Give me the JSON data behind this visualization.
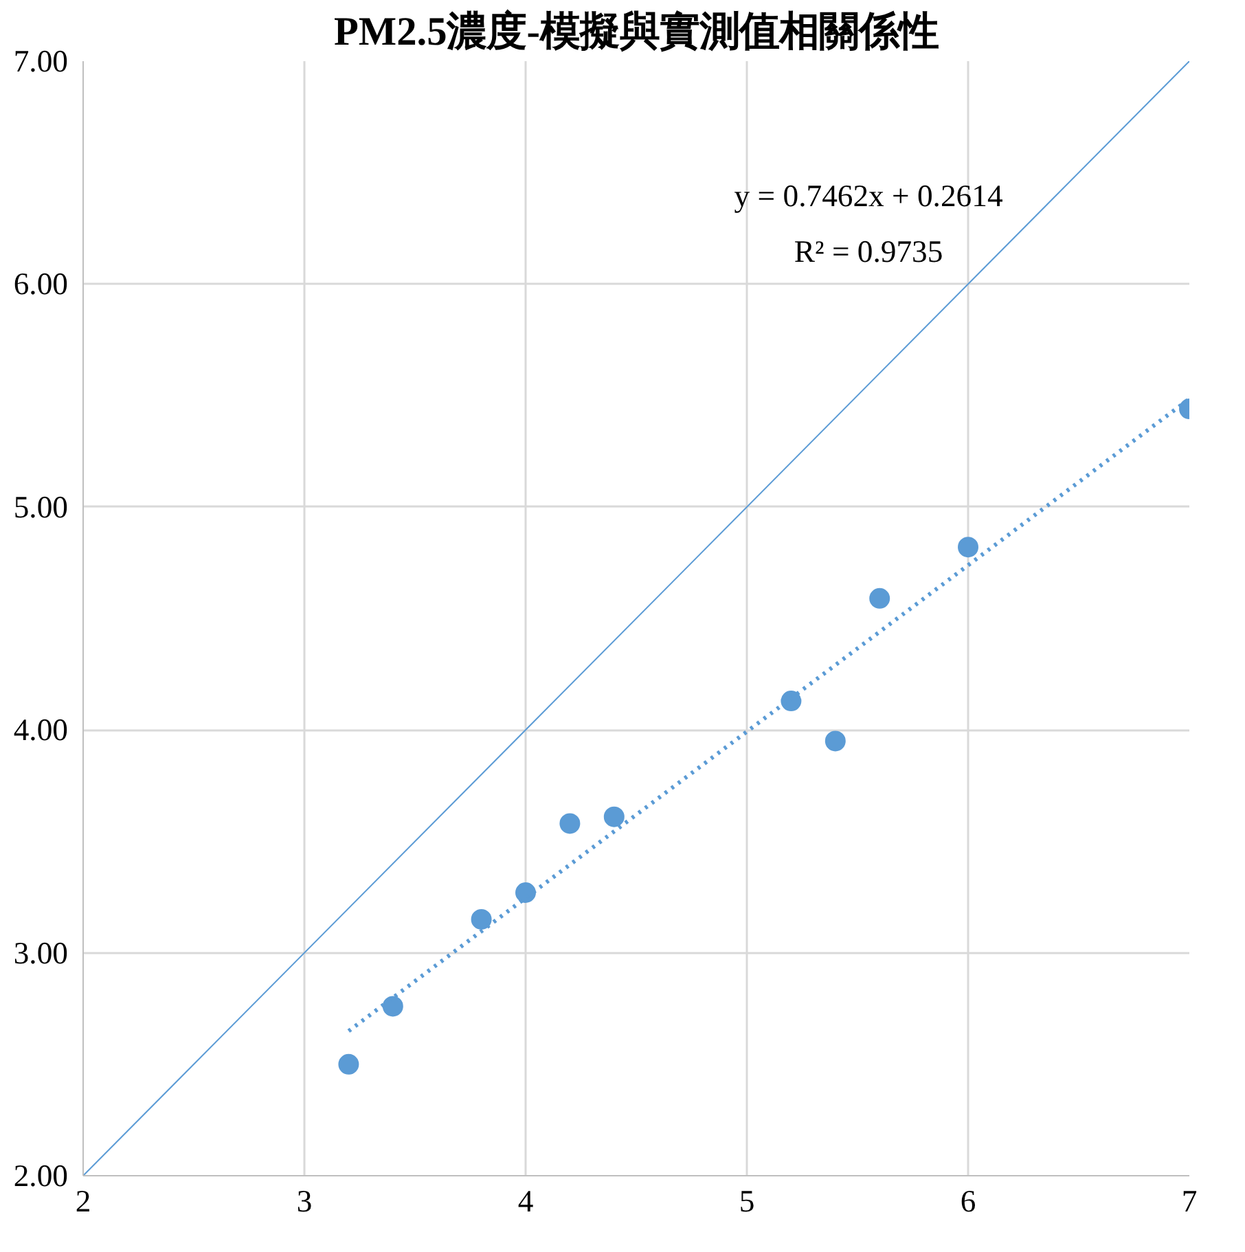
{
  "chart_data": {
    "type": "scatter",
    "title": "PM2.5濃度-模擬與實測值相關係性",
    "x": [
      3.2,
      3.4,
      3.8,
      4.0,
      4.2,
      4.4,
      5.2,
      5.4,
      5.6,
      6.0,
      7.0
    ],
    "series": [
      {
        "color": "#5b9bd5",
        "marker": "circle",
        "values": [
          2.5,
          2.76,
          3.15,
          3.27,
          3.58,
          3.61,
          4.13,
          3.95,
          4.59,
          4.82,
          5.44
        ]
      },
      {
        "type": "line",
        "color": "#5b9bd5",
        "line_style": "dotted",
        "marker": "none",
        "x": [
          3.2,
          7.0
        ],
        "values": [
          2.649,
          5.485
        ]
      },
      {
        "type": "line",
        "color": "#5b9bd5",
        "line_style": "solid",
        "marker": "none",
        "x": [
          2,
          7
        ],
        "values": [
          2,
          7
        ]
      }
    ],
    "xlim": [
      2,
      7
    ],
    "ylim": [
      2,
      7
    ],
    "xticks": [
      2,
      3,
      4,
      5,
      6,
      7
    ],
    "yticks": [
      {
        "value": 2,
        "label": "2.00"
      },
      {
        "value": 3,
        "label": "3.00"
      },
      {
        "value": 4,
        "label": "4.00"
      },
      {
        "value": 5,
        "label": "5.00"
      },
      {
        "value": 6,
        "label": "6.00"
      },
      {
        "value": 7,
        "label": "7.00"
      }
    ],
    "grid": true,
    "annotations": [
      "y = 0.7462x + 0.2614",
      "R² = 0.9735"
    ]
  }
}
